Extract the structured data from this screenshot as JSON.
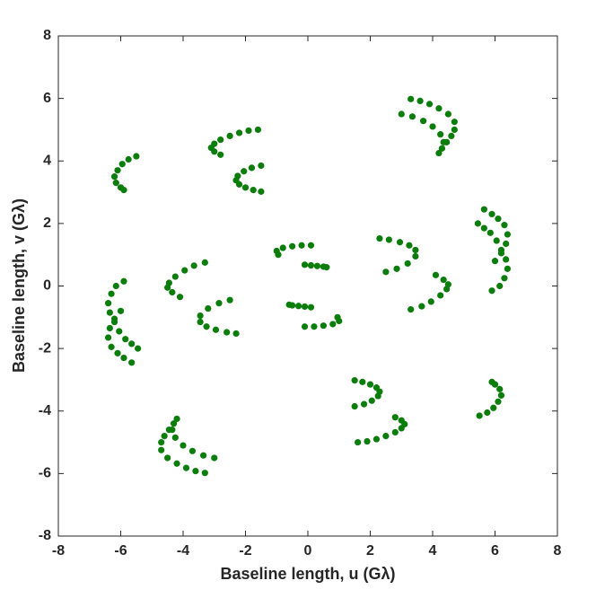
{
  "chart_data": {
    "type": "scatter",
    "xlabel": "Baseline length, u (Gλ)",
    "ylabel": "Baseline length, v (Gλ)",
    "xlim": [
      -8,
      8
    ],
    "ylim": [
      -8,
      8
    ],
    "xticks": [
      -8,
      -6,
      -4,
      -2,
      0,
      2,
      4,
      6,
      8
    ],
    "yticks": [
      -8,
      -6,
      -4,
      -2,
      0,
      2,
      4,
      6,
      8
    ],
    "grid": false,
    "series": [
      {
        "color": "#0a7d0a",
        "x": [
          -1.6,
          -1.9,
          -2.2,
          -2.5,
          -2.8,
          -3.0,
          -3.1,
          -3.0,
          -2.8,
          -1.5,
          -1.8,
          -2.05,
          -2.25,
          -2.3,
          -2.2,
          -2.0,
          -1.75,
          -1.5,
          -5.5,
          -5.75,
          -5.95,
          -6.1,
          -6.2,
          -6.15,
          -6.0,
          -5.9,
          3.3,
          3.6,
          3.9,
          4.2,
          4.5,
          4.7,
          4.7,
          4.6,
          4.45,
          3.0,
          3.35,
          3.7,
          4.0,
          4.25,
          4.35,
          4.3,
          4.2,
          -3.3,
          -3.65,
          -3.95,
          -4.25,
          -4.45,
          -4.5,
          -4.35,
          -4.1,
          -2.5,
          -2.85,
          -3.2,
          -3.45,
          -3.45,
          -3.25,
          -2.95,
          -2.6,
          -2.3,
          -0.95,
          -1.0,
          -0.8,
          -0.5,
          -0.2,
          0.1,
          -0.1,
          0.1,
          0.3,
          0.5,
          0.6,
          -5.9,
          -6.15,
          -6.3,
          -6.4,
          -6.35,
          -6.2,
          -6.05,
          -5.85,
          -5.65,
          -5.45,
          -6.0,
          -6.2,
          -6.35,
          -6.4,
          -6.3,
          -6.1,
          -5.9,
          -5.65,
          1.6,
          1.9,
          2.2,
          2.5,
          2.8,
          3.0,
          3.1,
          3.0,
          2.8,
          1.5,
          1.8,
          2.05,
          2.25,
          2.3,
          2.2,
          2.0,
          1.75,
          1.5,
          5.5,
          5.75,
          5.95,
          6.1,
          6.2,
          6.15,
          6.0,
          5.9,
          -3.3,
          -3.6,
          -3.9,
          -4.2,
          -4.5,
          -4.7,
          -4.7,
          -4.6,
          -4.45,
          -3.0,
          -3.35,
          -3.7,
          -4.0,
          -4.25,
          -4.35,
          -4.3,
          -4.2,
          3.3,
          3.65,
          3.95,
          4.25,
          4.45,
          4.5,
          4.35,
          4.1,
          2.5,
          2.85,
          3.2,
          3.45,
          3.45,
          3.25,
          2.95,
          2.6,
          2.3,
          0.95,
          1.0,
          0.8,
          0.5,
          0.2,
          -0.1,
          0.1,
          -0.1,
          -0.3,
          -0.5,
          -0.6,
          5.9,
          6.15,
          6.3,
          6.4,
          6.35,
          6.2,
          6.05,
          5.85,
          5.65,
          5.45,
          6.0,
          6.2,
          6.35,
          6.4,
          6.3,
          6.1,
          5.9,
          5.65
        ],
        "values": [
          5.0,
          4.97,
          4.9,
          4.8,
          4.68,
          4.55,
          4.42,
          4.3,
          4.2,
          3.85,
          3.78,
          3.67,
          3.52,
          3.38,
          3.25,
          3.15,
          3.07,
          3.02,
          4.15,
          4.05,
          3.9,
          3.7,
          3.5,
          3.3,
          3.15,
          3.07,
          5.98,
          5.92,
          5.82,
          5.68,
          5.5,
          5.25,
          5.0,
          4.8,
          4.6,
          5.5,
          5.42,
          5.28,
          5.1,
          4.85,
          4.6,
          4.4,
          4.25,
          0.75,
          0.65,
          0.5,
          0.3,
          0.1,
          -0.05,
          -0.2,
          -0.35,
          -0.45,
          -0.55,
          -0.72,
          -0.95,
          -1.15,
          -1.3,
          -1.4,
          -1.48,
          -1.52,
          1.0,
          1.12,
          1.22,
          1.27,
          1.3,
          1.3,
          0.68,
          0.66,
          0.64,
          0.62,
          0.6,
          0.15,
          0.0,
          -0.25,
          -0.55,
          -0.85,
          -1.15,
          -1.45,
          -1.7,
          -1.85,
          -2.0,
          -0.8,
          -1.05,
          -1.35,
          -1.65,
          -1.95,
          -2.15,
          -2.3,
          -2.45,
          -5.0,
          -4.97,
          -4.9,
          -4.8,
          -4.68,
          -4.55,
          -4.42,
          -4.3,
          -4.2,
          -3.85,
          -3.78,
          -3.67,
          -3.52,
          -3.38,
          -3.25,
          -3.15,
          -3.07,
          -3.02,
          -4.15,
          -4.05,
          -3.9,
          -3.7,
          -3.5,
          -3.3,
          -3.15,
          -3.07,
          -5.98,
          -5.92,
          -5.82,
          -5.68,
          -5.5,
          -5.25,
          -5.0,
          -4.8,
          -4.6,
          -5.5,
          -5.42,
          -5.28,
          -5.1,
          -4.85,
          -4.6,
          -4.4,
          -4.25,
          -0.75,
          -0.65,
          -0.5,
          -0.3,
          -0.1,
          0.05,
          0.2,
          0.35,
          0.45,
          0.55,
          0.72,
          0.95,
          1.15,
          1.3,
          1.4,
          1.48,
          1.52,
          -1.0,
          -1.12,
          -1.22,
          -1.27,
          -1.3,
          -1.3,
          -0.68,
          -0.66,
          -0.64,
          -0.62,
          -0.6,
          -0.15,
          0.0,
          0.25,
          0.55,
          0.85,
          1.15,
          1.45,
          1.7,
          1.85,
          2.0,
          0.8,
          1.05,
          1.35,
          1.65,
          1.95,
          2.15,
          2.3,
          2.45
        ]
      }
    ]
  }
}
